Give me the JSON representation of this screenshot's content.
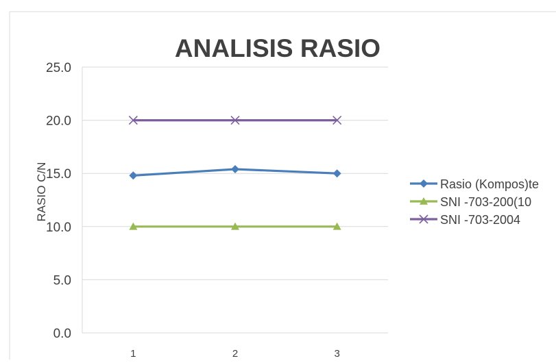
{
  "chart_data": {
    "type": "line",
    "title": "ANALISIS RASIO",
    "xlabel": "",
    "ylabel": "RASIO C/N",
    "x": [
      "1",
      "2",
      "3"
    ],
    "ylim": [
      0,
      25
    ],
    "yticks": [
      "0.0",
      "5.0",
      "10.0",
      "15.0",
      "20.0",
      "25.0"
    ],
    "grid": true,
    "legend_position": "right",
    "series": [
      {
        "name": "Rasio (Kompos)te",
        "values": [
          14.8,
          15.4,
          15.0
        ],
        "color": "#4a7ebb",
        "marker": "diamond"
      },
      {
        "name": "SNI -703-200(10",
        "values": [
          10.0,
          10.0,
          10.0
        ],
        "color": "#98b954",
        "marker": "triangle"
      },
      {
        "name": "SNI -703-2004",
        "values": [
          20.0,
          20.0,
          20.0
        ],
        "color": "#7d5fa0",
        "marker": "x"
      }
    ]
  }
}
